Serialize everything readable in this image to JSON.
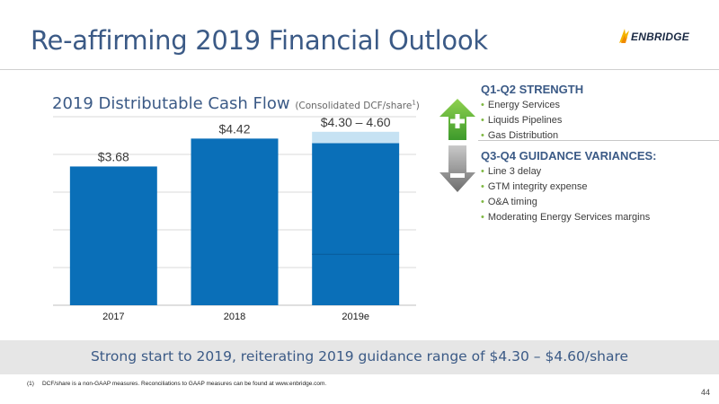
{
  "header": {
    "title": "Re-affirming 2019 Financial Outlook",
    "logo_text": "ENBRIDGE"
  },
  "chart_title": "2019 Distributable Cash Flow",
  "chart_subtitle": "(Consolidated DCF/share",
  "chart_subtitle_sup": "1",
  "chart_subtitle_end": ")",
  "chart_data": {
    "type": "bar",
    "title": "2019 Distributable Cash Flow",
    "categories": [
      "2017",
      "2018",
      "2019e"
    ],
    "values": [
      3.68,
      4.42,
      4.3
    ],
    "range_top": 4.6,
    "data_labels": [
      "$3.68",
      "$4.42",
      "$4.30 – 4.60"
    ],
    "ylim": [
      0,
      5.0
    ],
    "grid": true,
    "colors": {
      "bar": "#0a6fb8",
      "range": "#c6e2f3",
      "grid": "#d9d9d9",
      "axis": "#bfbfbf"
    }
  },
  "sidebar": {
    "strength_heading": "Q1-Q2 STRENGTH",
    "strength_items": [
      "Energy Services",
      "Liquids Pipelines",
      "Gas Distribution"
    ],
    "variance_heading": "Q3-Q4 GUIDANCE VARIANCES:",
    "variance_items": [
      "Line 3 delay",
      "GTM integrity expense",
      "O&A timing",
      "Moderating Energy Services margins"
    ],
    "bullet": "•",
    "up_icon": "plus-arrow-up-icon",
    "down_icon": "minus-arrow-down-icon"
  },
  "banner_text": "Strong start to 2019, reiterating 2019 guidance range of $4.30 – $4.60/share",
  "footnote": {
    "number": "(1)",
    "text": "DCF/share is a non-GAAP measures. Reconciliations to GAAP measures can be found at www.enbridge.com."
  },
  "page_number": "44"
}
